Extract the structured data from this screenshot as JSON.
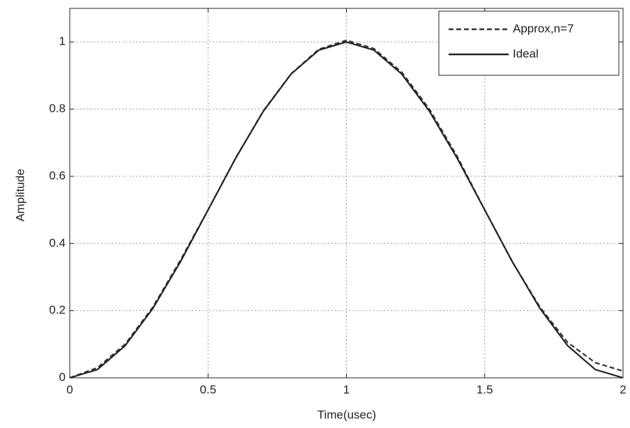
{
  "chart_data": {
    "type": "line",
    "x_label": "Time(usec)",
    "y_label": "Amplitude",
    "x": [
      0,
      0.1,
      0.2,
      0.3,
      0.4,
      0.5,
      0.6,
      0.7,
      0.8,
      0.9,
      1,
      1.1,
      1.2,
      1.3,
      1.4,
      1.5,
      1.6,
      1.7,
      1.8,
      1.9,
      2
    ],
    "series": [
      {
        "name": "Approx,n=7",
        "color": "#333333",
        "style": "dashed",
        "values": [
          0,
          0.03,
          0.1,
          0.21,
          0.35,
          0.5,
          0.655,
          0.795,
          0.905,
          0.978,
          1.005,
          0.98,
          0.91,
          0.8,
          0.66,
          0.5,
          0.345,
          0.21,
          0.105,
          0.045,
          0.02
        ]
      },
      {
        "name": "Ideal",
        "color": "#222222",
        "style": "solid",
        "values": [
          0,
          0.0245,
          0.0955,
          0.2061,
          0.3455,
          0.5,
          0.6545,
          0.7939,
          0.9045,
          0.9755,
          1,
          0.9755,
          0.9045,
          0.7939,
          0.6545,
          0.5,
          0.3455,
          0.2061,
          0.0955,
          0.0245,
          0
        ]
      }
    ],
    "xlim": [
      0,
      2
    ],
    "xticks": [
      0,
      0.5,
      1,
      1.5,
      2
    ],
    "ylim": [
      0,
      1.1
    ],
    "yticks": [
      0,
      0.2,
      0.4,
      0.6,
      0.8,
      1
    ],
    "grid": true,
    "legend": "upper right"
  }
}
